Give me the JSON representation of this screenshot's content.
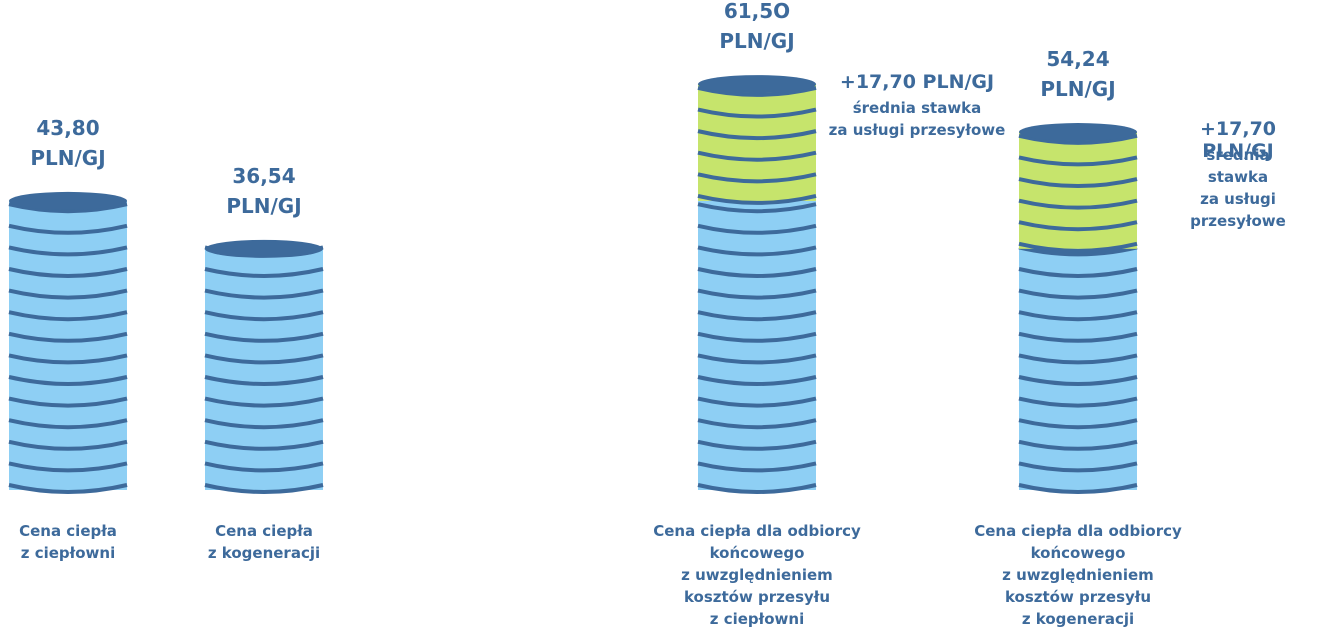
{
  "chart_data": {
    "type": "bar",
    "categories": [
      "Cena ciepła\nz ciepłowni",
      "Cena ciepła\nz kogeneracji",
      "Cena ciepła dla odbiorcy\nkońcowego\nz uwzględnieniem\nkosztów przesyłu\nz ciepłowni",
      "Cena ciepła dla odbiorcy\nkońcowego\nz uwzględnieniem\nkosztów przesyłu\nz kogeneracji"
    ],
    "series": [
      {
        "color": "#8ecff4",
        "values": [
          43.8,
          36.54,
          43.8,
          36.54
        ]
      },
      {
        "color": "#c6e46c",
        "values": [
          null,
          null,
          17.7,
          17.7
        ],
        "value_labels": [
          null,
          null,
          "+17,70 PLN/GJ",
          "+17,70 PLN/GJ"
        ]
      }
    ],
    "totals": [
      43.8,
      36.54,
      61.5,
      54.24
    ],
    "total_labels": [
      "43,80",
      "36,54",
      "61,5O",
      "54,24"
    ],
    "unit": "PLN/GJ",
    "annotation": "średnia stawka\nza usługi przesyłowe",
    "edge_color": "#3d6a9b"
  }
}
